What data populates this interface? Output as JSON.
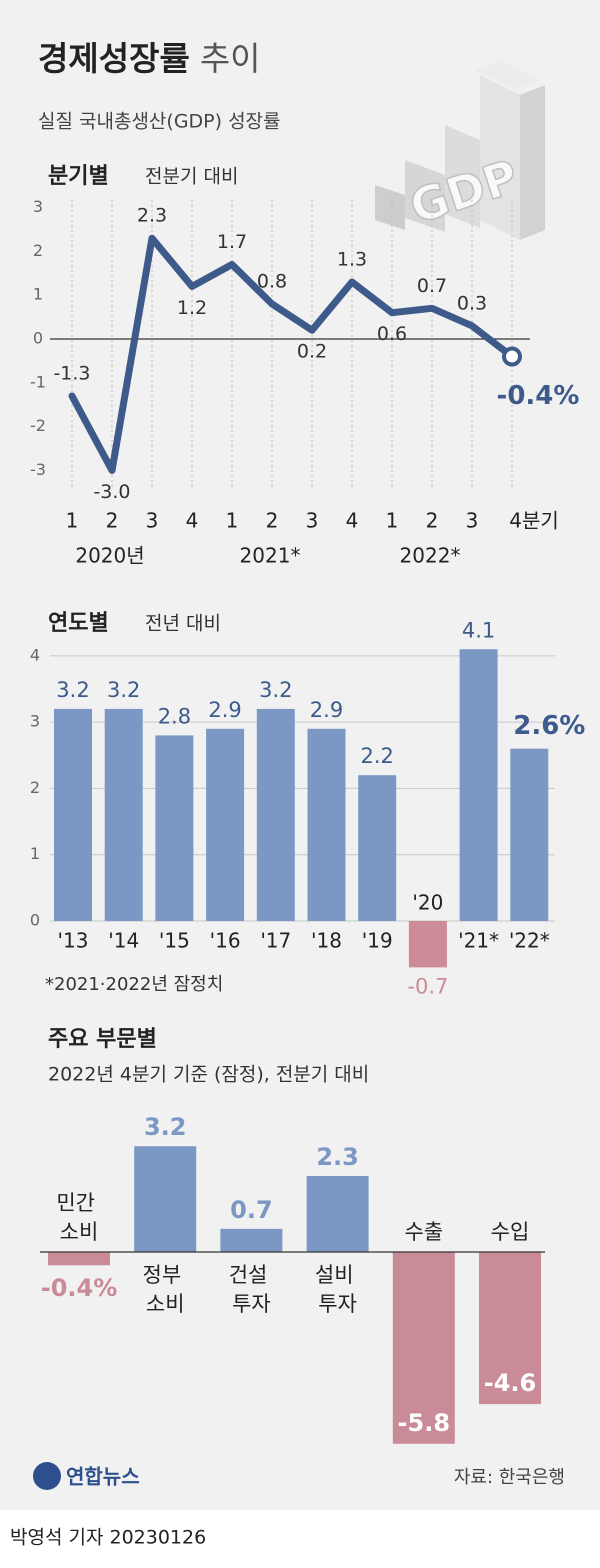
{
  "header": {
    "title": "경제성장률",
    "title_light": "추이",
    "subtitle": "실질 국내총생산(GDP) 성장률",
    "icon_text": "GDP"
  },
  "chart_data": [
    {
      "type": "line",
      "title": "분기별",
      "subtitle": "전분기 대비",
      "categories": [
        "1",
        "2",
        "3",
        "4",
        "1",
        "2",
        "3",
        "4",
        "1",
        "2",
        "3",
        "4분기"
      ],
      "groups": [
        "2020년",
        "2021*",
        "2022*"
      ],
      "values": [
        -1.3,
        -3.0,
        2.3,
        1.2,
        1.7,
        0.8,
        0.2,
        1.3,
        0.6,
        0.7,
        0.3,
        -0.4
      ],
      "value_labels": [
        "-1.3",
        "-3.0",
        "2.3",
        "1.2",
        "1.7",
        "0.8",
        "0.2",
        "1.3",
        "0.6",
        "0.7",
        "0.3",
        "-0.4%"
      ],
      "color": "#3d5a8b",
      "ylim": [
        -3.4,
        3.4
      ],
      "yticks": [
        -3,
        -2,
        -1,
        0,
        1,
        2,
        3
      ]
    },
    {
      "type": "bar",
      "title": "연도별",
      "subtitle": "전년 대비",
      "categories": [
        "'13",
        "'14",
        "'15",
        "'16",
        "'17",
        "'18",
        "'19",
        "'20",
        "'21*",
        "'22*"
      ],
      "values": [
        3.2,
        3.2,
        2.8,
        2.9,
        3.2,
        2.9,
        2.2,
        -0.7,
        4.1,
        2.6
      ],
      "value_labels": [
        "3.2",
        "3.2",
        "2.8",
        "2.9",
        "3.2",
        "2.9",
        "2.2",
        "-0.7",
        "4.1",
        "2.6%"
      ],
      "color": "#7b98c4",
      "negative_color": "#cc8b97",
      "ylim": [
        -0.8,
        4.3
      ],
      "yticks": [
        0,
        1,
        2,
        3,
        4
      ],
      "grid": true,
      "footnote": "*2021·2022년 잠정치"
    },
    {
      "type": "bar",
      "title": "주요 부문별",
      "subtitle": "2022년 4분기 기준 (잠정), 전분기 대비",
      "categories": [
        "민간 소비",
        "정부 소비",
        "건설 투자",
        "설비 투자",
        "수출",
        "수입"
      ],
      "values": [
        -0.4,
        3.2,
        0.7,
        2.3,
        -5.8,
        -4.6
      ],
      "value_labels": [
        "-0.4%",
        "3.2",
        "0.7",
        "2.3",
        "-5.8",
        "-4.6"
      ],
      "color": "#7b98c4",
      "negative_color": "#c98b98",
      "ylim": [
        -6.2,
        3.6
      ]
    }
  ],
  "footer": {
    "logo": "연합뉴스",
    "source": "자료: 한국은행",
    "byline": "박영석 기자 20230126"
  }
}
